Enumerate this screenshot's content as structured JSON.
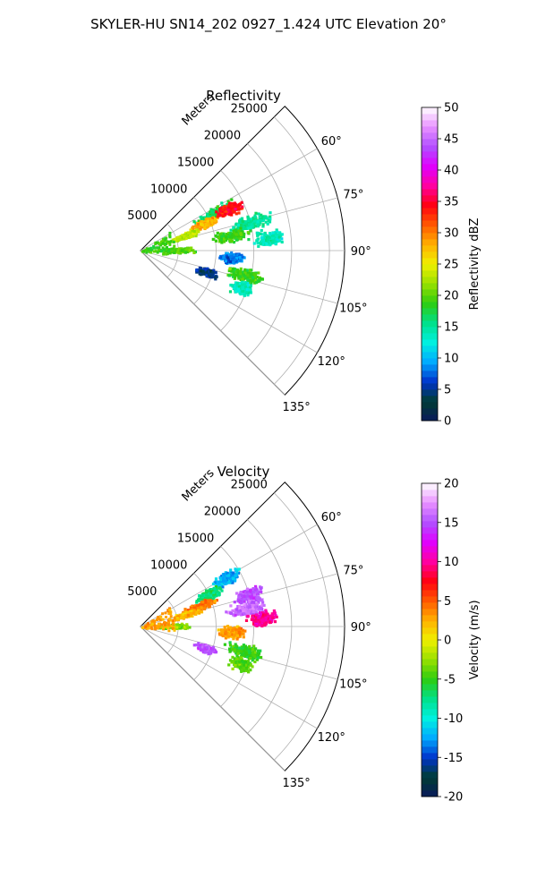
{
  "figure_title": "SKYLER-HU  SN14_202  0927_1.424 UTC Elevation 20°",
  "chart_data": [
    {
      "type": "polar-sector",
      "title": "Reflectivity",
      "range_axis_label": "Meters",
      "range_ticks": [
        5000,
        10000,
        15000,
        20000,
        25000
      ],
      "range_max": 27000,
      "angle_ticks": [
        60,
        75,
        90,
        105,
        120,
        135
      ],
      "angle_tick_labels": [
        "60°",
        "75°",
        "90°",
        "105°",
        "120°",
        "135°"
      ],
      "angle_range": [
        45,
        135
      ],
      "grid": true,
      "colorbar": {
        "label": "Reflectivity dBZ",
        "min": 0,
        "max": 50,
        "ticks": [
          0,
          5,
          10,
          15,
          20,
          25,
          30,
          35,
          40,
          45,
          50
        ],
        "stops": [
          "#0a1a5c",
          "#003d33",
          "#0033cc",
          "#00aaff",
          "#00f0e0",
          "#00e08a",
          "#2ecc10",
          "#99e000",
          "#f0f000",
          "#ffb000",
          "#ff5a00",
          "#ff0010",
          "#ff00a0",
          "#e000ff",
          "#b050ff",
          "#e890ff",
          "#ffffff"
        ]
      },
      "echo_regions": [
        {
          "az": 62,
          "r": 11000,
          "spread": 3500,
          "value": 17
        },
        {
          "az": 66,
          "r": 9000,
          "spread": 2500,
          "value": 28
        },
        {
          "az": 64,
          "r": 13000,
          "spread": 2500,
          "value": 34
        },
        {
          "az": 70,
          "r": 6000,
          "spread": 2500,
          "value": 23
        },
        {
          "az": 75,
          "r": 15000,
          "spread": 3500,
          "value": 15
        },
        {
          "az": 80,
          "r": 12000,
          "spread": 3000,
          "value": 19
        },
        {
          "az": 84,
          "r": 17000,
          "spread": 2500,
          "value": 14
        },
        {
          "az": 88,
          "r": 5000,
          "spread": 2500,
          "value": 20
        },
        {
          "az": 94,
          "r": 12000,
          "spread": 2000,
          "value": 8
        },
        {
          "az": 103,
          "r": 14000,
          "spread": 3000,
          "value": 19
        },
        {
          "az": 108,
          "r": 9000,
          "spread": 1800,
          "value": 5
        },
        {
          "az": 110,
          "r": 14000,
          "spread": 2000,
          "value": 14
        }
      ]
    },
    {
      "type": "polar-sector",
      "title": "Velocity",
      "range_axis_label": "Meters",
      "range_ticks": [
        5000,
        10000,
        15000,
        20000,
        25000
      ],
      "range_max": 27000,
      "angle_ticks": [
        60,
        75,
        90,
        105,
        120,
        135
      ],
      "angle_tick_labels": [
        "60°",
        "75°",
        "90°",
        "105°",
        "120°",
        "135°"
      ],
      "angle_range": [
        45,
        135
      ],
      "grid": true,
      "colorbar": {
        "label": "Velocity (m/s)",
        "min": -20,
        "max": 20,
        "ticks": [
          -20,
          -15,
          -10,
          -5,
          0,
          5,
          10,
          15,
          20
        ],
        "stops": [
          "#0a1a5c",
          "#003d33",
          "#0033cc",
          "#00aaff",
          "#00f0e0",
          "#00e08a",
          "#2ecc10",
          "#99e000",
          "#f0f000",
          "#ffb000",
          "#ff5a00",
          "#ff0010",
          "#ff00a0",
          "#e000ff",
          "#b050ff",
          "#e890ff",
          "#ffffff"
        ]
      },
      "echo_regions": [
        {
          "az": 60,
          "r": 13000,
          "spread": 2500,
          "value": -12
        },
        {
          "az": 64,
          "r": 10000,
          "spread": 2500,
          "value": -7
        },
        {
          "az": 70,
          "r": 8000,
          "spread": 3000,
          "value": 4
        },
        {
          "az": 74,
          "r": 6000,
          "spread": 2500,
          "value": 2
        },
        {
          "az": 73,
          "r": 15000,
          "spread": 2500,
          "value": 15
        },
        {
          "az": 80,
          "r": 14000,
          "spread": 3000,
          "value": 16
        },
        {
          "az": 86,
          "r": 16000,
          "spread": 2500,
          "value": 10
        },
        {
          "az": 88,
          "r": 4500,
          "spread": 2500,
          "value": -3
        },
        {
          "az": 93,
          "r": 12000,
          "spread": 2000,
          "value": 3
        },
        {
          "az": 103,
          "r": 14000,
          "spread": 3000,
          "value": -5
        },
        {
          "az": 108,
          "r": 9000,
          "spread": 1800,
          "value": 15
        },
        {
          "az": 110,
          "r": 14000,
          "spread": 2000,
          "value": -4
        }
      ]
    }
  ]
}
